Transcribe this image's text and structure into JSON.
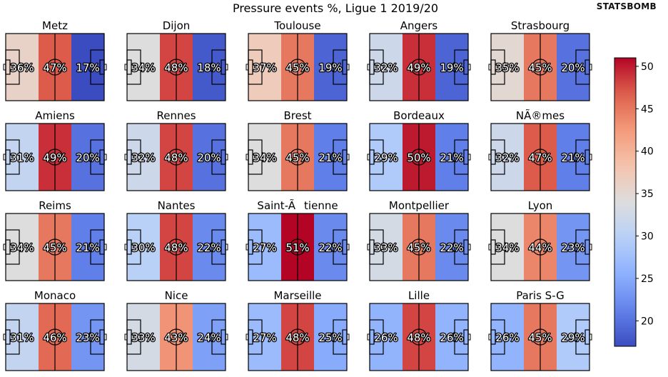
{
  "chart_data": {
    "type": "heatmap",
    "title": "Pressure events %, Ligue 1 2019/20",
    "brand": "STATSBOMB",
    "zones": [
      "defensive third",
      "middle third",
      "attacking third"
    ],
    "teams": [
      {
        "name": "Metz",
        "values": [
          36,
          47,
          17
        ]
      },
      {
        "name": "Dijon",
        "values": [
          34,
          48,
          18
        ]
      },
      {
        "name": "Toulouse",
        "values": [
          37,
          45,
          19
        ]
      },
      {
        "name": "Angers",
        "values": [
          32,
          49,
          19
        ]
      },
      {
        "name": "Strasbourg",
        "values": [
          35,
          45,
          20
        ]
      },
      {
        "name": "Amiens",
        "values": [
          31,
          49,
          20
        ]
      },
      {
        "name": "Rennes",
        "values": [
          32,
          48,
          20
        ]
      },
      {
        "name": "Brest",
        "values": [
          34,
          45,
          21
        ]
      },
      {
        "name": "Bordeaux",
        "values": [
          29,
          50,
          21
        ]
      },
      {
        "name": "NÃ®mes",
        "values": [
          32,
          47,
          21
        ]
      },
      {
        "name": "Reims",
        "values": [
          34,
          45,
          21
        ]
      },
      {
        "name": "Nantes",
        "values": [
          30,
          48,
          22
        ]
      },
      {
        "name": "Saint-Ãtienne",
        "values": [
          27,
          51,
          22
        ]
      },
      {
        "name": "Montpellier",
        "values": [
          33,
          45,
          22
        ]
      },
      {
        "name": "Lyon",
        "values": [
          34,
          44,
          23
        ]
      },
      {
        "name": "Monaco",
        "values": [
          31,
          46,
          23
        ]
      },
      {
        "name": "Nice",
        "values": [
          33,
          43,
          24
        ]
      },
      {
        "name": "Marseille",
        "values": [
          27,
          48,
          25
        ]
      },
      {
        "name": "Lille",
        "values": [
          26,
          48,
          26
        ]
      },
      {
        "name": "Paris S-G",
        "values": [
          26,
          45,
          29
        ]
      }
    ],
    "colorbar": {
      "colormap": "coolwarm",
      "vmin": 17,
      "vmax": 51,
      "ticks": [
        20,
        25,
        30,
        35,
        40,
        45,
        50
      ]
    }
  }
}
